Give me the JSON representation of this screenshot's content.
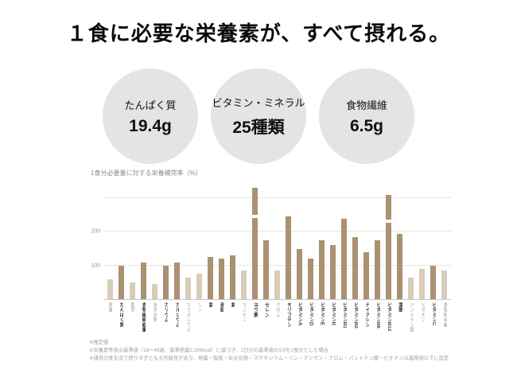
{
  "title": "１食に必要な栄養素が、すべて摂れる。",
  "stats": [
    {
      "label": "たんぱく質",
      "value": "19.4g"
    },
    {
      "label": "ビタミン・ミネラル",
      "value": "25種類"
    },
    {
      "label": "食物繊維",
      "value": "6.5g"
    }
  ],
  "colors": {
    "bar_emphasis": "#aa9172",
    "bar_normal": "#d7ccb8",
    "circle_bg": "#e5e4e2"
  },
  "chart_data": {
    "type": "bar",
    "title": "1食分必要量に対する栄養補完率（%）",
    "ylabel": "栄養補完率（%）",
    "ylim": [
      0,
      350
    ],
    "yticks": [
      100,
      200
    ],
    "gridlines": [
      100,
      200,
      300
    ],
    "legend": "none",
    "bars": [
      {
        "label": "熱量",
        "value": 60,
        "emphasis": false
      },
      {
        "label": "たんぱく質",
        "value": 100,
        "emphasis": true
      },
      {
        "label": "脂質",
        "value": 50,
        "emphasis": false
      },
      {
        "label": "食物繊維総量",
        "value": 110,
        "emphasis": true
      },
      {
        "label": "炭水化物",
        "value": 45,
        "emphasis": false
      },
      {
        "label": "カリウム",
        "value": 100,
        "emphasis": true
      },
      {
        "label": "カルシウム",
        "value": 110,
        "emphasis": true
      },
      {
        "label": "マグネシウム",
        "value": 65,
        "emphasis": false
      },
      {
        "label": "リン",
        "value": 75,
        "emphasis": false
      },
      {
        "label": "鉄",
        "value": 125,
        "emphasis": true
      },
      {
        "label": "亜鉛",
        "value": 120,
        "emphasis": true
      },
      {
        "label": "銅",
        "value": 130,
        "emphasis": true
      },
      {
        "label": "マンガン",
        "value": 85,
        "emphasis": false
      },
      {
        "label": "ヨウ素",
        "value": 330,
        "emphasis": true
      },
      {
        "label": "セレン",
        "value": 175,
        "emphasis": true
      },
      {
        "label": "クロム",
        "value": 85,
        "emphasis": false
      },
      {
        "label": "モリブデン",
        "value": 245,
        "emphasis": true
      },
      {
        "label": "ビタミンA",
        "value": 150,
        "emphasis": true
      },
      {
        "label": "ビタミンD",
        "value": 120,
        "emphasis": true
      },
      {
        "label": "ビタミンE",
        "value": 175,
        "emphasis": true
      },
      {
        "label": "ビタミンK",
        "value": 160,
        "emphasis": true
      },
      {
        "label": "ビタミンB1",
        "value": 240,
        "emphasis": true
      },
      {
        "label": "ビタミンB2",
        "value": 185,
        "emphasis": true
      },
      {
        "label": "ナイアシン",
        "value": 140,
        "emphasis": true
      },
      {
        "label": "ビタミンB6",
        "value": 175,
        "emphasis": true
      },
      {
        "label": "ビタミンB12",
        "value": 310,
        "emphasis": true
      },
      {
        "label": "葉酸",
        "value": 195,
        "emphasis": true
      },
      {
        "label": "パントテン酸",
        "value": 65,
        "emphasis": false
      },
      {
        "label": "ビオチン",
        "value": 90,
        "emphasis": false
      },
      {
        "label": "ビタミンC",
        "value": 100,
        "emphasis": true
      },
      {
        "label": "食塩相当量",
        "value": 85,
        "emphasis": false
      }
    ]
  },
  "footnotes": [
    "※推定値",
    "※栄養素等表示基準値（18〜49歳、基準熱量2,200kcal）に基づき、1日分の基準値の1/3を1食分とした場合",
    "※通常の食生活で摂りすぎとなる可能性があり、熱量・脂質・炭水化物・マグネシウム・リン・マンガン・クロム・パントテン酸・ビオチンは基準値以下に設定"
  ]
}
